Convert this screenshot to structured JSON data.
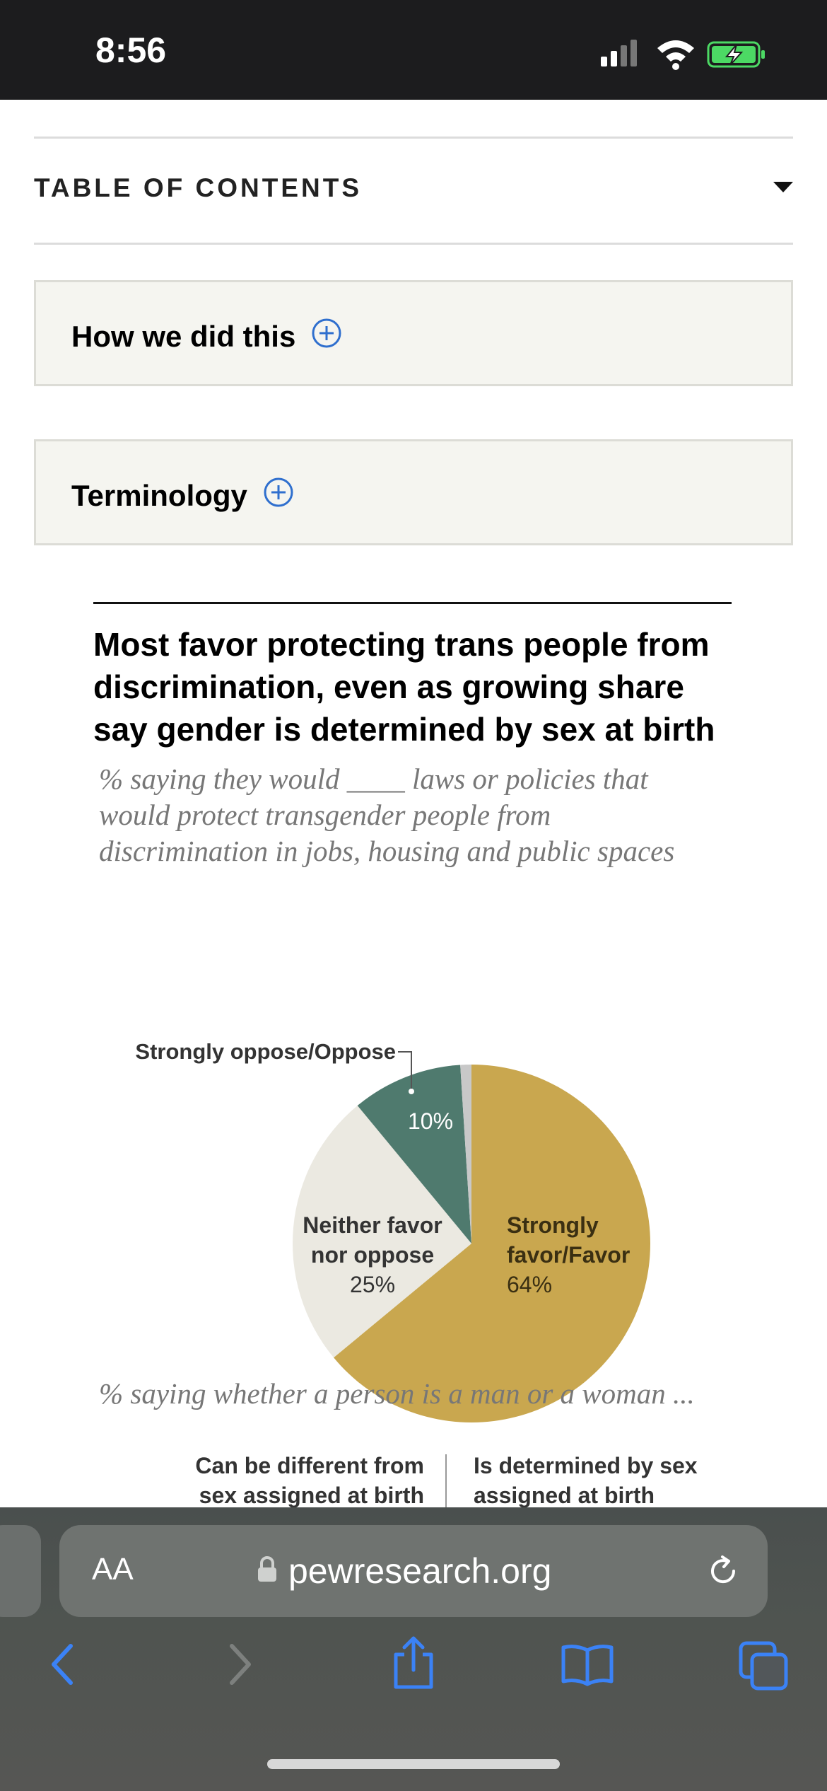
{
  "status": {
    "time": "8:56"
  },
  "toc": {
    "title": "TABLE OF CONTENTS"
  },
  "accordions": [
    {
      "label": "How we did this"
    },
    {
      "label": "Terminology"
    }
  ],
  "chart": {
    "title": "Most favor protecting trans people from discrimination, even as growing share say gender is determined by sex at birth",
    "title_lines": [
      "Most favor protecting trans people from",
      "discrimination, even as growing share",
      "say gender is determined by sex at birth"
    ],
    "subtitle_lines": [
      "% saying they would ____ laws or policies that",
      "would protect transgender people from",
      "discrimination in jobs, housing and public spaces"
    ],
    "subtitle2": "% saying whether a person is a man or a woman ...",
    "col_left": [
      "Can be different from",
      "sex assigned at birth"
    ],
    "col_right": [
      "Is determined by sex",
      "assigned at birth"
    ],
    "colors": {
      "favor": "#c9a74f",
      "neither": "#ebe9e1",
      "oppose": "#4f7a6e",
      "other": "#c8c8c8"
    }
  },
  "chart_data": {
    "type": "pie",
    "slices": [
      {
        "label": "Strongly favor/Favor",
        "label_lines": [
          "Strongly",
          "favor/Favor"
        ],
        "value": 64,
        "value_label": "64%"
      },
      {
        "label": "Neither favor nor oppose",
        "label_lines": [
          "Neither favor",
          "nor oppose"
        ],
        "value": 25,
        "value_label": "25%"
      },
      {
        "label": "Strongly oppose/Oppose",
        "label_lines": [
          "Strongly oppose/Oppose"
        ],
        "value": 10,
        "value_label": "10%"
      },
      {
        "label": "",
        "label_lines": [],
        "value": 1,
        "value_label": ""
      }
    ]
  },
  "browser": {
    "aa_label": "AA",
    "url": "pewresearch.org"
  }
}
